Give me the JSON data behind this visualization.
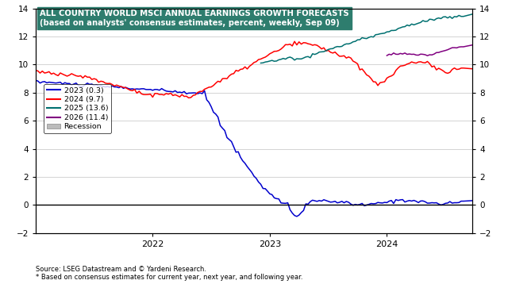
{
  "title_line1": "ALL COUNTRY WORLD MSCI ANNUAL EARNINGS GROWTH FORECASTS",
  "title_line2": "(based on analysts' consensus estimates, percent, weekly, Sep 09)",
  "title_bg_color": "#2E7D6E",
  "legend_entries": [
    "2023 (0.3)",
    "2024 (9.7)",
    "2025 (13.6)",
    "2026 (11.4)",
    "Recession"
  ],
  "line_colors": [
    "#0000CC",
    "#FF0000",
    "#007070",
    "#800080",
    "#BBBBBB"
  ],
  "bg_color": "#FFFFFF",
  "plot_bg_color": "#FFFFFF",
  "ylim": [
    -2,
    14
  ],
  "yticks": [
    -2,
    0,
    2,
    4,
    6,
    8,
    10,
    12,
    14
  ],
  "source_text": "Source: LSEG Datastream and © Yardeni Research.\n* Based on consensus estimates for current year, next year, and following year."
}
